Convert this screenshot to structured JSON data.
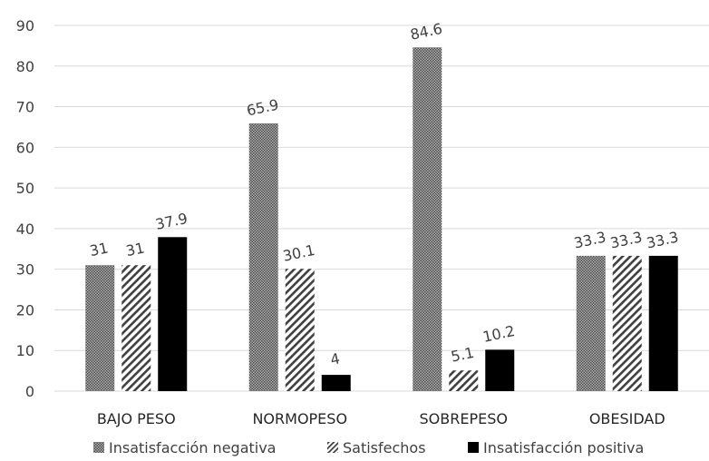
{
  "chart_data": {
    "type": "bar",
    "categories": [
      "BAJO PESO",
      "NORMOPESO",
      "SOBREPESO",
      "OBESIDAD"
    ],
    "series": [
      {
        "name": "Insatisfacción negativa",
        "values": [
          31,
          65.9,
          84.6,
          33.3
        ],
        "labels": [
          "31",
          "65.9",
          "84.6",
          "33.3"
        ],
        "pattern": "dotted-gray"
      },
      {
        "name": "Satisfechos",
        "values": [
          31,
          30.1,
          5.1,
          33.3
        ],
        "labels": [
          "31",
          "30.1",
          "5.1",
          "33.3"
        ],
        "pattern": "diagonal-hatch"
      },
      {
        "name": "Insatisfacción positiva",
        "values": [
          37.9,
          4,
          10.2,
          33.3
        ],
        "labels": [
          "37.9",
          "4",
          "10.2",
          "33.3"
        ],
        "pattern": "solid-black"
      }
    ],
    "yticks": [
      "0",
      "10",
      "20",
      "30",
      "40",
      "50",
      "60",
      "70",
      "80",
      "90"
    ],
    "ylim": [
      0,
      90
    ],
    "grid": true,
    "legend_position": "bottom",
    "colors": {
      "grid": "#d9d9d9",
      "text": "#404040",
      "solid": "#000000",
      "pattern_dark": "#595959"
    }
  }
}
